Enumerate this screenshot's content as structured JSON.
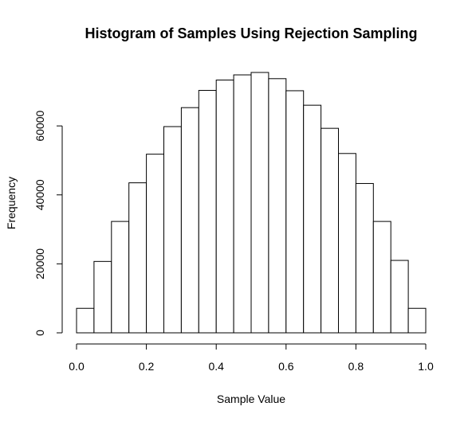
{
  "chart_data": {
    "type": "bar",
    "title": "Histogram of Samples Using Rejection Sampling",
    "xlabel": "Sample Value",
    "ylabel": "Frequency",
    "bin_edges": [
      0.0,
      0.05,
      0.1,
      0.15,
      0.2,
      0.25,
      0.3,
      0.35,
      0.4,
      0.45,
      0.5,
      0.55,
      0.6,
      0.65,
      0.7,
      0.75,
      0.8,
      0.85,
      0.9,
      0.95,
      1.0
    ],
    "values": [
      7100,
      20700,
      32300,
      43500,
      51800,
      59800,
      65300,
      70300,
      73300,
      74800,
      75500,
      73700,
      70200,
      66000,
      59300,
      52000,
      43300,
      32300,
      21000,
      7100
    ],
    "xlim": [
      0.0,
      1.0
    ],
    "ylim": [
      0,
      75500
    ],
    "x_ticks": [
      "0.0",
      "0.2",
      "0.4",
      "0.6",
      "0.8",
      "1.0"
    ],
    "y_ticks": [
      "0",
      "20000",
      "40000",
      "60000"
    ],
    "x_tick_values": [
      0.0,
      0.2,
      0.4,
      0.6,
      0.8,
      1.0
    ],
    "y_tick_values": [
      0,
      20000,
      40000,
      60000
    ],
    "grid": false,
    "bar_fill": "#ffffff",
    "bar_stroke": "#000000"
  }
}
